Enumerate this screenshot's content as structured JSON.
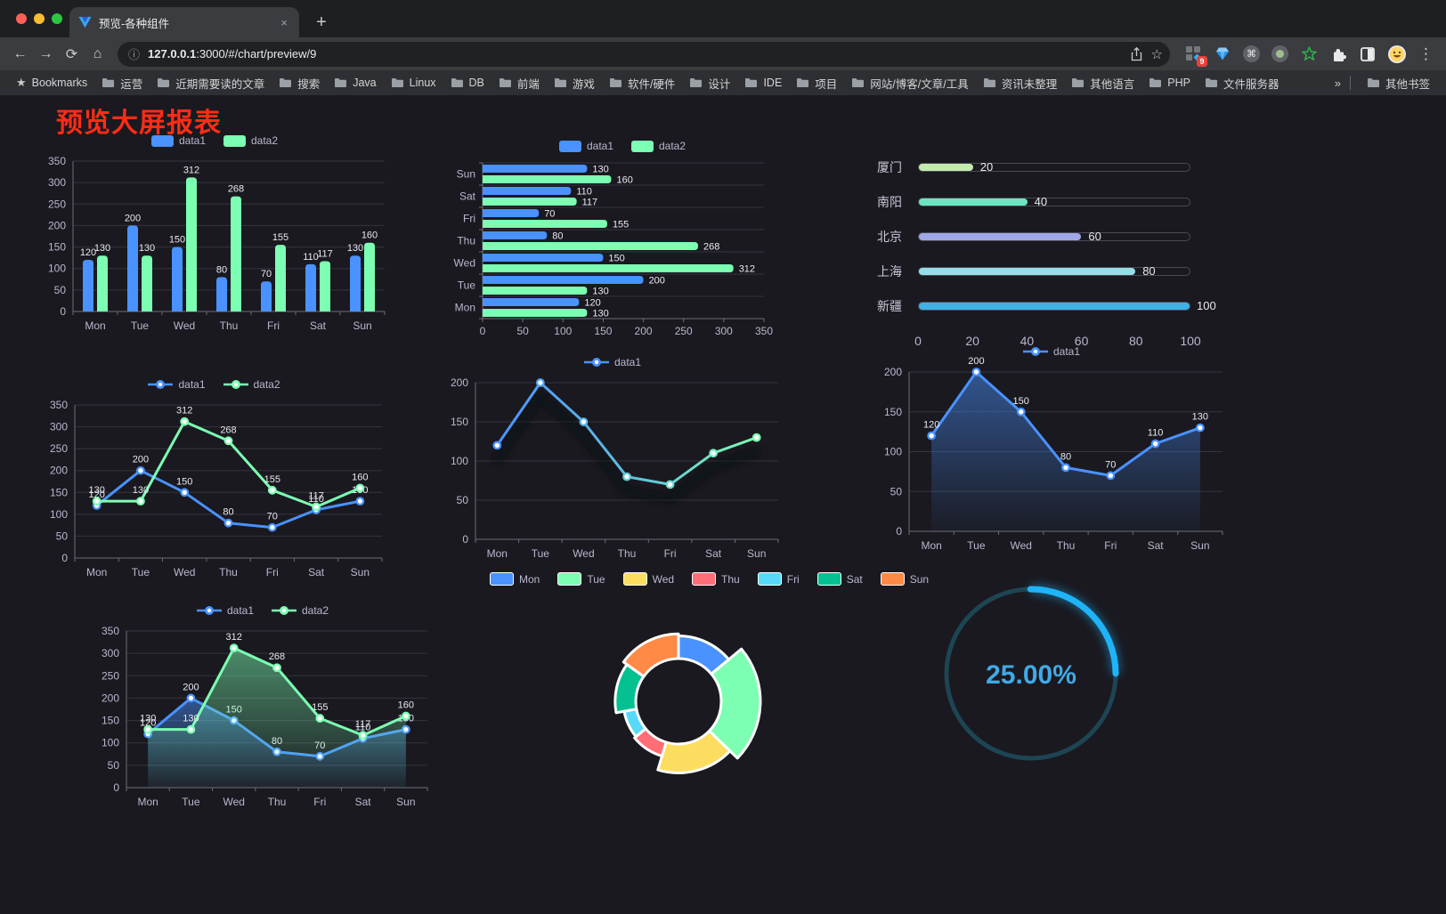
{
  "browser": {
    "tab_title": "预览-各种组件",
    "tab_close": "×",
    "new_tab": "+",
    "back": "←",
    "forward": "→",
    "reload": "⟳",
    "home": "⌂",
    "url_info": "ⓘ",
    "url_host": "127.0.0.1",
    "url_rest": ":3000/#/chart/preview/9",
    "star": "☆",
    "extension_badge": "9",
    "cmd_glyph": "⌘",
    "menu": "⋮",
    "bookmarks": [
      "Bookmarks",
      "运营",
      "近期需要读的文章",
      "搜索",
      "Java",
      "Linux",
      "DB",
      "前端",
      "游戏",
      "软件/硬件",
      "设计",
      "IDE",
      "项目",
      "网站/博客/文章/工具",
      "资讯未整理",
      "其他语言",
      "PHP",
      "文件服务器"
    ],
    "overflow_chevron": "»",
    "other_bookmarks": "其他书签"
  },
  "page": {
    "title": "预览大屏报表",
    "title_color": "#fe2c16",
    "background": "#1a1920",
    "axis_label_color": "#b9b8ce",
    "value_label_color": "#e9e9f1"
  },
  "chart_data": [
    {
      "id": "bar-grouped",
      "type": "bar",
      "legend": "rect",
      "labels": true,
      "categories": [
        "Mon",
        "Tue",
        "Wed",
        "Thu",
        "Fri",
        "Sat",
        "Sun"
      ],
      "yticks": [
        0,
        50,
        100,
        150,
        200,
        250,
        300,
        350
      ],
      "ylim": [
        0,
        350
      ],
      "series": [
        {
          "name": "data1",
          "color": "#4992ff",
          "values": [
            120,
            200,
            150,
            80,
            70,
            110,
            130
          ]
        },
        {
          "name": "data2",
          "color": "#7cffb2",
          "values": [
            130,
            130,
            312,
            268,
            155,
            117,
            160
          ]
        }
      ]
    },
    {
      "id": "bar-horizontal",
      "type": "hbar",
      "legend": "rect",
      "labels": true,
      "categories": [
        "Mon",
        "Tue",
        "Wed",
        "Thu",
        "Fri",
        "Sat",
        "Sun"
      ],
      "xticks": [
        0,
        50,
        100,
        150,
        200,
        250,
        300,
        350
      ],
      "xlim": [
        0,
        350
      ],
      "series": [
        {
          "name": "data1",
          "color": "#4992ff",
          "values": [
            120,
            200,
            150,
            80,
            70,
            110,
            130
          ]
        },
        {
          "name": "data2",
          "color": "#7cffb2",
          "values": [
            130,
            130,
            312,
            268,
            155,
            117,
            160
          ]
        }
      ]
    },
    {
      "id": "progress-bars",
      "type": "progress",
      "max": 100,
      "xticks": [
        0,
        20,
        40,
        60,
        80,
        100
      ],
      "rows": [
        {
          "label": "厦门",
          "value": 20,
          "color": "#c4ebad"
        },
        {
          "label": "南阳",
          "value": 40,
          "color": "#6be6c1"
        },
        {
          "label": "北京",
          "value": 60,
          "color": "#a0a7e6"
        },
        {
          "label": "上海",
          "value": 80,
          "color": "#96dee8"
        },
        {
          "label": "新疆",
          "value": 100,
          "color": "#3fb1e3"
        }
      ]
    },
    {
      "id": "line-two",
      "type": "line",
      "legend": "line",
      "labels": true,
      "categories": [
        "Mon",
        "Tue",
        "Wed",
        "Thu",
        "Fri",
        "Sat",
        "Sun"
      ],
      "yticks": [
        0,
        50,
        100,
        150,
        200,
        250,
        300,
        350
      ],
      "ylim": [
        0,
        350
      ],
      "series": [
        {
          "name": "data1",
          "color": "#4992ff",
          "values": [
            120,
            200,
            150,
            80,
            70,
            110,
            130
          ]
        },
        {
          "name": "data2",
          "color": "#7cffb2",
          "values": [
            130,
            130,
            312,
            268,
            155,
            117,
            160
          ]
        }
      ]
    },
    {
      "id": "line-gradient",
      "type": "line",
      "legend": "line",
      "labels": false,
      "shadow": true,
      "categories": [
        "Mon",
        "Tue",
        "Wed",
        "Thu",
        "Fri",
        "Sat",
        "Sun"
      ],
      "yticks": [
        0,
        50,
        100,
        150,
        200
      ],
      "ylim": [
        0,
        200
      ],
      "series": [
        {
          "name": "data1",
          "gradient": [
            "#4992ff",
            "#7cffb2"
          ],
          "color": "#4992ff",
          "values": [
            120,
            200,
            150,
            80,
            70,
            110,
            130
          ]
        }
      ]
    },
    {
      "id": "area-single",
      "type": "line",
      "legend": "line",
      "labels": true,
      "categories": [
        "Mon",
        "Tue",
        "Wed",
        "Thu",
        "Fri",
        "Sat",
        "Sun"
      ],
      "yticks": [
        0,
        50,
        100,
        150,
        200
      ],
      "ylim": [
        0,
        200
      ],
      "series": [
        {
          "name": "data1",
          "color": "#4992ff",
          "area": true,
          "values": [
            120,
            200,
            150,
            80,
            70,
            110,
            130
          ]
        }
      ]
    },
    {
      "id": "area-two",
      "type": "line",
      "legend": "line",
      "labels": true,
      "categories": [
        "Mon",
        "Tue",
        "Wed",
        "Thu",
        "Fri",
        "Sat",
        "Sun"
      ],
      "yticks": [
        0,
        50,
        100,
        150,
        200,
        250,
        300,
        350
      ],
      "ylim": [
        0,
        350
      ],
      "series": [
        {
          "name": "data1",
          "color": "#4992ff",
          "area": true,
          "values": [
            120,
            200,
            150,
            80,
            70,
            110,
            130
          ]
        },
        {
          "name": "data2",
          "color": "#7cffb2",
          "area": true,
          "values": [
            130,
            130,
            312,
            268,
            155,
            117,
            160
          ]
        }
      ]
    },
    {
      "id": "pie-rose",
      "type": "pie",
      "rose": true,
      "labels": [
        "Mon",
        "Tue",
        "Wed",
        "Thu",
        "Fri",
        "Sat",
        "Sun"
      ],
      "values": [
        120,
        200,
        150,
        80,
        70,
        110,
        130
      ],
      "colors": [
        "#4992ff",
        "#7cffb2",
        "#fddd60",
        "#ff6e76",
        "#58d9f9",
        "#05c091",
        "#ff8a45"
      ]
    },
    {
      "id": "gauge",
      "type": "gauge",
      "value": 25,
      "max": 100,
      "label": "25.00%",
      "color": "#1fb3f7",
      "track_color": "#1d4553",
      "text_color": "#41a9e6"
    }
  ]
}
